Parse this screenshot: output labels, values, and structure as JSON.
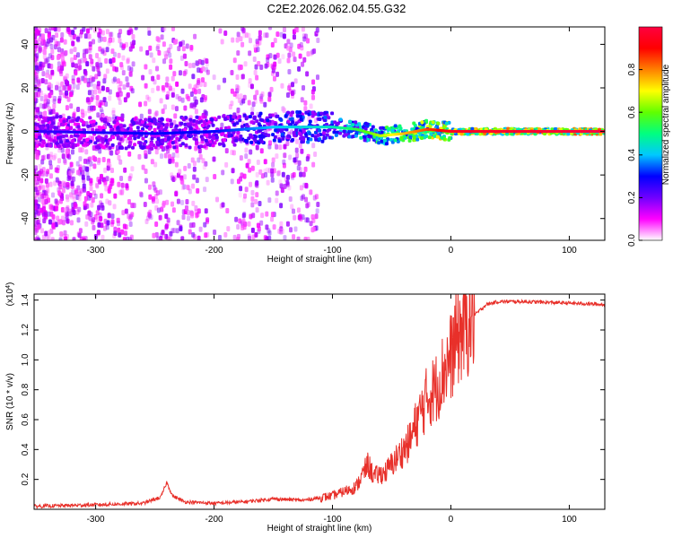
{
  "title": "C2E2.2026.062.04.55.G32",
  "chart_data": [
    {
      "type": "heatmap",
      "xlabel": "Height of straight line (km)",
      "ylabel": "Frequency (Hz)",
      "xlim": [
        -352,
        130
      ],
      "ylim": [
        -50,
        48
      ],
      "x_ticks": [
        -300,
        -200,
        -100,
        0,
        100
      ],
      "y_ticks": [
        -40,
        -20,
        0,
        20,
        40
      ],
      "colorbar": {
        "label": "Normalized spectral amplitude",
        "range": [
          0,
          1
        ],
        "ticks": [
          "0.0",
          "0.2",
          "0.4",
          "0.6",
          "0.8"
        ],
        "colors": [
          "#ffffff",
          "#ff00ff",
          "#7000ff",
          "#0000ff",
          "#00c8ff",
          "#00ff80",
          "#60ff00",
          "#ffff00",
          "#ff8000",
          "#ff0000",
          "#ff0040"
        ]
      },
      "ridge": [
        {
          "x": -352,
          "y": 0,
          "amp": 0.25
        },
        {
          "x": -250,
          "y": -1,
          "amp": 0.3
        },
        {
          "x": -200,
          "y": 0,
          "amp": 0.3
        },
        {
          "x": -150,
          "y": 2,
          "amp": 0.4
        },
        {
          "x": -100,
          "y": 2,
          "amp": 0.45
        },
        {
          "x": -80,
          "y": 1,
          "amp": 0.55
        },
        {
          "x": -60,
          "y": -2,
          "amp": 0.65
        },
        {
          "x": -40,
          "y": -1,
          "amp": 0.75
        },
        {
          "x": -20,
          "y": 1,
          "amp": 0.85
        },
        {
          "x": 0,
          "y": 0,
          "amp": 0.95
        },
        {
          "x": 130,
          "y": 0,
          "amp": 1.0
        }
      ]
    },
    {
      "type": "line",
      "xlabel": "Height of straight line (km)",
      "ylabel": "SNR (10 * v/v)",
      "y_multiplier": "(x10^4)",
      "y_multiplier_base": "(x10",
      "y_multiplier_exp": "4",
      "xlim": [
        -352,
        130
      ],
      "ylim": [
        0,
        1.44
      ],
      "x_ticks": [
        -300,
        -200,
        -100,
        0,
        100
      ],
      "y_ticks": [
        0.2,
        0.4,
        0.6,
        0.8,
        1.0,
        1.2,
        1.4
      ],
      "line_color": "#e8302a",
      "series": [
        {
          "x": [
            -352,
            -300,
            -260,
            -245,
            -240,
            -235,
            -225,
            -200,
            -175,
            -150,
            -125,
            -100,
            -80,
            -70,
            -65,
            -55,
            -45,
            -35,
            -28,
            -20,
            -12,
            -5,
            0,
            5,
            12,
            20,
            30,
            40,
            60,
            100,
            130
          ],
          "values": [
            0.02,
            0.03,
            0.04,
            0.08,
            0.18,
            0.09,
            0.05,
            0.04,
            0.05,
            0.07,
            0.06,
            0.09,
            0.15,
            0.3,
            0.22,
            0.25,
            0.35,
            0.45,
            0.6,
            0.75,
            0.82,
            0.95,
            1.02,
            1.15,
            1.22,
            1.3,
            1.37,
            1.39,
            1.39,
            1.38,
            1.37
          ]
        }
      ]
    }
  ]
}
